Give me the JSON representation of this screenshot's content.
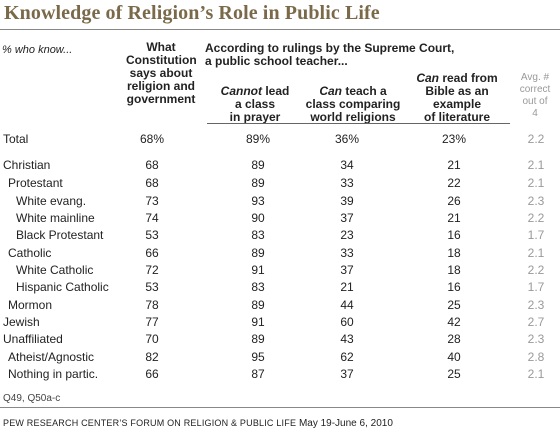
{
  "title": "Knowledge of Religion’s Role in Public Life",
  "percent_note": "% who know...",
  "headers": {
    "col1": [
      "What",
      "Constitution",
      "says about",
      "religion and",
      "government"
    ],
    "group": [
      "According to rulings by the Supreme Court,",
      "a public school teacher..."
    ],
    "col2_em": "Cannot",
    "col2_rest": [
      " lead",
      "a class",
      "in prayer"
    ],
    "col3_em": "Can",
    "col3_rest": [
      " teach a",
      "class comparing",
      "world religions"
    ],
    "col4_em": "Can",
    "col4_rest": [
      " read from",
      "Bible as an",
      "example",
      "of literature"
    ],
    "avg": [
      "Avg. #",
      "correct",
      "out of",
      "4"
    ]
  },
  "chart_data": {
    "type": "table",
    "columns": [
      "What Constitution says about religion and government",
      "Cannot lead a class in prayer",
      "Can teach a class comparing world religions",
      "Can read from Bible as an example of literature",
      "Avg. # correct out of 4"
    ],
    "rows": [
      {
        "label": "Total",
        "values": [
          "68%",
          "89%",
          "36%",
          "23%",
          "2.2"
        ]
      },
      {
        "label": "Christian",
        "values": [
          "68",
          "89",
          "34",
          "21",
          "2.1"
        ]
      },
      {
        "label": "Protestant",
        "values": [
          "68",
          "89",
          "33",
          "22",
          "2.1"
        ]
      },
      {
        "label": "White evang.",
        "values": [
          "73",
          "93",
          "39",
          "26",
          "2.3"
        ]
      },
      {
        "label": "White mainline",
        "values": [
          "74",
          "90",
          "37",
          "21",
          "2.2"
        ]
      },
      {
        "label": "Black Protestant",
        "values": [
          "53",
          "83",
          "23",
          "16",
          "1.7"
        ]
      },
      {
        "label": "Catholic",
        "values": [
          "66",
          "89",
          "33",
          "18",
          "2.1"
        ]
      },
      {
        "label": "White Catholic",
        "values": [
          "72",
          "91",
          "37",
          "18",
          "2.2"
        ]
      },
      {
        "label": "Hispanic Catholic",
        "values": [
          "53",
          "83",
          "21",
          "16",
          "1.7"
        ]
      },
      {
        "label": "Mormon",
        "values": [
          "78",
          "89",
          "44",
          "25",
          "2.3"
        ]
      },
      {
        "label": "Jewish",
        "values": [
          "77",
          "91",
          "60",
          "42",
          "2.7"
        ]
      },
      {
        "label": "Unaffiliated",
        "values": [
          "70",
          "89",
          "43",
          "28",
          "2.3"
        ]
      },
      {
        "label": "Atheist/Agnostic",
        "values": [
          "82",
          "95",
          "62",
          "40",
          "2.8"
        ]
      },
      {
        "label": "Nothing in partic.",
        "values": [
          "66",
          "87",
          "37",
          "25",
          "2.1"
        ]
      }
    ]
  },
  "note": "Q49, Q50a-c",
  "source": {
    "org": "PEW RESEARCH CENTER’S FORUM ON RELIGION & PUBLIC LIFE",
    "date": "May 19-June 6, 2010"
  }
}
